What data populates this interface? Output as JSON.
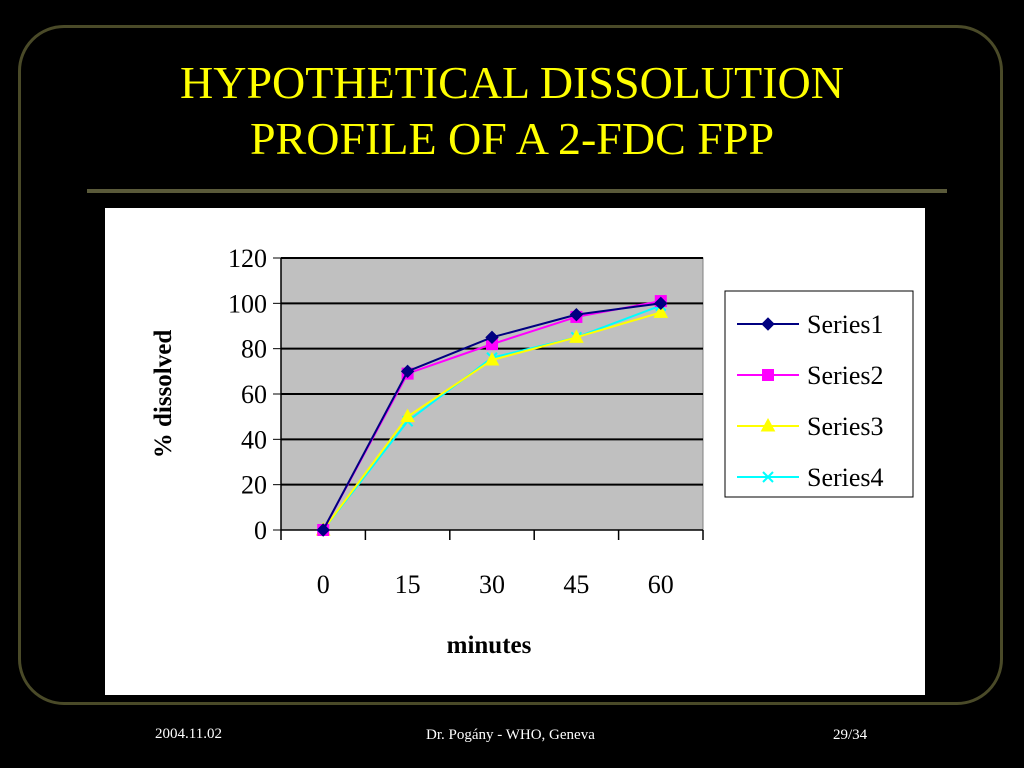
{
  "slide": {
    "title_line1": "HYPOTHETICAL DISSOLUTION",
    "title_line2": "PROFILE OF A 2-FDC FPP"
  },
  "footer": {
    "date": "2004.11.02",
    "author": "Dr. Pogány - WHO, Geneva",
    "page": "29/34"
  },
  "colors": {
    "background": "#000000",
    "title": "#ffff00",
    "plot_area": "#c0c0c0"
  },
  "chart_data": {
    "type": "line",
    "x": [
      0,
      15,
      30,
      45,
      60
    ],
    "categories": [
      "0",
      "15",
      "30",
      "45",
      "60"
    ],
    "xlabel": "minutes",
    "ylabel": "% dissolved",
    "ylim": [
      0,
      120
    ],
    "yticks": [
      "0",
      "20",
      "40",
      "60",
      "80",
      "100",
      "120"
    ],
    "grid": true,
    "legend_position": "right",
    "series": [
      {
        "name": "Series1",
        "values": [
          0,
          70,
          85,
          95,
          100
        ],
        "color": "#000080",
        "marker": "diamond"
      },
      {
        "name": "Series2",
        "values": [
          0,
          69,
          82,
          94,
          101
        ],
        "color": "#ff00ff",
        "marker": "square"
      },
      {
        "name": "Series3",
        "values": [
          0,
          50,
          75,
          85,
          96
        ],
        "color": "#ffff00",
        "marker": "triangle"
      },
      {
        "name": "Series4",
        "values": [
          0,
          48,
          76,
          85,
          99
        ],
        "color": "#00ffff",
        "marker": "x"
      }
    ]
  }
}
